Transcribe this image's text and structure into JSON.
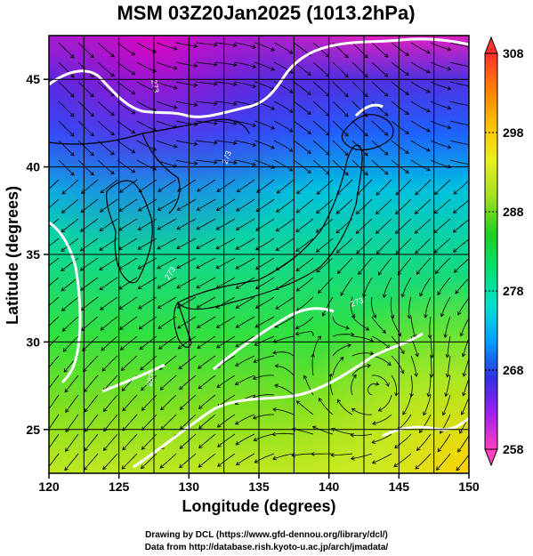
{
  "title": "MSM 03Z20Jan2025 (1013.2hPa)",
  "x_axis": {
    "label": "Longitude (degrees)",
    "range": [
      120,
      150
    ],
    "ticks": [
      120,
      125,
      130,
      135,
      140,
      145,
      150
    ]
  },
  "y_axis": {
    "label": "Latitude  (degrees)",
    "range": [
      22.5,
      47.5
    ],
    "ticks": [
      25,
      30,
      35,
      40,
      45
    ]
  },
  "colorbar": {
    "range": [
      258,
      308
    ],
    "ticks": [
      258,
      268,
      278,
      288,
      298,
      308
    ],
    "colors": [
      "#ff3fc0",
      "#a020f0",
      "#3030e0",
      "#00a0ff",
      "#00e0d0",
      "#00e070",
      "#20d020",
      "#a0e020",
      "#e8f020",
      "#ffc000",
      "#ff8000",
      "#ff3030"
    ],
    "end_top": "#ff3030",
    "end_bottom": "#ff3fc0"
  },
  "credits": {
    "line1": "Drawing by DCL (https://www.gfd-dennou.org/library/dcl/)",
    "line2": "Data from http://database.rish.kyoto-u.ac.jp/arch/jmadata/"
  },
  "contour_labels": [
    "273",
    "273",
    "273",
    "273",
    "283"
  ],
  "colors": {
    "grid": "#000000",
    "coastline": "#000000",
    "contour": "#ffffff",
    "streamline": "#000000"
  }
}
